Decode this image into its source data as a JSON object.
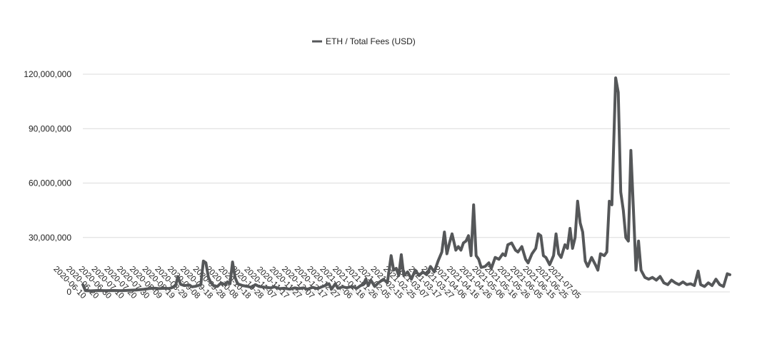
{
  "chart_data": {
    "type": "line",
    "title": "",
    "xlabel": "",
    "ylabel": "",
    "legend": {
      "position": "top-center"
    },
    "ylim": [
      0,
      120000000
    ],
    "grid": true,
    "y_ticks": [
      {
        "value": 0,
        "label": "0"
      },
      {
        "value": 30000000,
        "label": "30,000,000"
      },
      {
        "value": 60000000,
        "label": "60,000,000"
      },
      {
        "value": 90000000,
        "label": "90,000,000"
      },
      {
        "value": 120000000,
        "label": "120,000,000"
      }
    ],
    "x_ticks": [
      "2020-06-10",
      "2020-06-20",
      "2020-06-30",
      "2020-07-10",
      "2020-07-20",
      "2020-07-30",
      "2020-08-09",
      "2020-08-19",
      "2020-08-29",
      "2020-09-08",
      "2020-09-18",
      "2020-09-28",
      "2020-10-08",
      "2020-10-18",
      "2020-10-28",
      "2020-11-07",
      "2020-11-17",
      "2020-11-27",
      "2020-12-07",
      "2020-12-17",
      "2020-12-27",
      "2021-01-06",
      "2021-01-16",
      "2021-01-26",
      "2021-02-05",
      "2021-02-15",
      "2021-02-25",
      "2021-03-07",
      "2021-03-17",
      "2021-03-27",
      "2021-04-06",
      "2021-04-16",
      "2021-04-26",
      "2021-05-06",
      "2021-05-16",
      "2021-05-26",
      "2021-06-05",
      "2021-06-15",
      "2021-06-25",
      "2021-07-05"
    ],
    "color": "#555759",
    "series": [
      {
        "name": "ETH / Total Fees (USD)",
        "points": [
          [
            "2020-06-10",
            4000000
          ],
          [
            "2020-06-12",
            700000
          ],
          [
            "2020-06-16",
            600000
          ],
          [
            "2020-06-22",
            800000
          ],
          [
            "2020-06-28",
            700000
          ],
          [
            "2020-07-04",
            800000
          ],
          [
            "2020-07-10",
            700000
          ],
          [
            "2020-07-16",
            900000
          ],
          [
            "2020-07-22",
            1100000
          ],
          [
            "2020-07-28",
            1400000
          ],
          [
            "2020-08-01",
            1800000
          ],
          [
            "2020-08-05",
            2100000
          ],
          [
            "2020-08-09",
            1800000
          ],
          [
            "2020-08-13",
            2000000
          ],
          [
            "2020-08-17",
            1900000
          ],
          [
            "2020-08-19",
            2300000
          ],
          [
            "2020-08-22",
            3200000
          ],
          [
            "2020-08-24",
            8500000
          ],
          [
            "2020-08-26",
            4200000
          ],
          [
            "2020-08-29",
            3500000
          ],
          [
            "2020-09-02",
            3800000
          ],
          [
            "2020-09-04",
            2800000
          ],
          [
            "2020-09-07",
            3100000
          ],
          [
            "2020-09-11",
            4000000
          ],
          [
            "2020-09-13",
            17000000
          ],
          [
            "2020-09-15",
            16000000
          ],
          [
            "2020-09-17",
            8000000
          ],
          [
            "2020-09-19",
            5000000
          ],
          [
            "2020-09-21",
            3500000
          ],
          [
            "2020-09-24",
            3000000
          ],
          [
            "2020-09-27",
            5000000
          ],
          [
            "2020-09-30",
            4000000
          ],
          [
            "2020-10-02",
            5500000
          ],
          [
            "2020-10-04",
            4500000
          ],
          [
            "2020-10-06",
            16500000
          ],
          [
            "2020-10-08",
            8000000
          ],
          [
            "2020-10-10",
            4500000
          ],
          [
            "2020-10-14",
            3500000
          ],
          [
            "2020-10-18",
            3000000
          ],
          [
            "2020-10-21",
            2500000
          ],
          [
            "2020-10-24",
            4000000
          ],
          [
            "2020-10-27",
            3000000
          ],
          [
            "2020-11-01",
            2500000
          ],
          [
            "2020-11-05",
            2200000
          ],
          [
            "2020-11-08",
            2800000
          ],
          [
            "2020-11-12",
            1800000
          ],
          [
            "2020-11-16",
            2000000
          ],
          [
            "2020-11-20",
            1500000
          ],
          [
            "2020-11-24",
            2200000
          ],
          [
            "2020-11-27",
            1800000
          ],
          [
            "2020-12-01",
            2200000
          ],
          [
            "2020-12-04",
            1500000
          ],
          [
            "2020-12-08",
            2500000
          ],
          [
            "2020-12-12",
            1800000
          ],
          [
            "2020-12-15",
            2700000
          ],
          [
            "2020-12-18",
            3500000
          ],
          [
            "2020-12-21",
            4500000
          ],
          [
            "2020-12-23",
            1500000
          ],
          [
            "2020-12-26",
            4500000
          ],
          [
            "2020-12-28",
            2000000
          ],
          [
            "2021-01-01",
            2800000
          ],
          [
            "2021-01-04",
            2300000
          ],
          [
            "2021-01-08",
            3000000
          ],
          [
            "2021-01-12",
            2000000
          ],
          [
            "2021-01-15",
            3500000
          ],
          [
            "2021-01-17",
            4000000
          ],
          [
            "2021-01-19",
            7000000
          ],
          [
            "2021-01-21",
            3500000
          ],
          [
            "2021-01-23",
            6500000
          ],
          [
            "2021-01-26",
            3000000
          ],
          [
            "2021-01-29",
            5000000
          ],
          [
            "2021-02-02",
            7000000
          ],
          [
            "2021-02-05",
            5000000
          ],
          [
            "2021-02-08",
            20000000
          ],
          [
            "2021-02-10",
            12000000
          ],
          [
            "2021-02-12",
            13000000
          ],
          [
            "2021-02-14",
            9000000
          ],
          [
            "2021-02-16",
            20500000
          ],
          [
            "2021-02-18",
            9000000
          ],
          [
            "2021-02-21",
            11000000
          ],
          [
            "2021-02-24",
            7000000
          ],
          [
            "2021-02-27",
            12000000
          ],
          [
            "2021-03-02",
            9000000
          ],
          [
            "2021-03-05",
            11000000
          ],
          [
            "2021-03-08",
            9500000
          ],
          [
            "2021-03-11",
            14000000
          ],
          [
            "2021-03-14",
            11000000
          ],
          [
            "2021-03-17",
            17000000
          ],
          [
            "2021-03-20",
            22000000
          ],
          [
            "2021-03-22",
            33000000
          ],
          [
            "2021-03-24",
            21000000
          ],
          [
            "2021-03-26",
            27000000
          ],
          [
            "2021-03-28",
            32000000
          ],
          [
            "2021-03-31",
            23000000
          ],
          [
            "2021-04-02",
            25000000
          ],
          [
            "2021-04-04",
            23000000
          ],
          [
            "2021-04-06",
            27000000
          ],
          [
            "2021-04-08",
            28000000
          ],
          [
            "2021-04-10",
            31000000
          ],
          [
            "2021-04-12",
            20000000
          ],
          [
            "2021-04-14",
            48000000
          ],
          [
            "2021-04-16",
            20000000
          ],
          [
            "2021-04-18",
            18000000
          ],
          [
            "2021-04-20",
            13500000
          ],
          [
            "2021-04-23",
            14000000
          ],
          [
            "2021-04-26",
            16000000
          ],
          [
            "2021-04-28",
            13000000
          ],
          [
            "2021-05-01",
            19000000
          ],
          [
            "2021-05-04",
            18000000
          ],
          [
            "2021-05-07",
            21000000
          ],
          [
            "2021-05-09",
            20000000
          ],
          [
            "2021-05-11",
            26000000
          ],
          [
            "2021-05-14",
            27000000
          ],
          [
            "2021-05-17",
            23000000
          ],
          [
            "2021-05-19",
            22000000
          ],
          [
            "2021-05-22",
            25000000
          ],
          [
            "2021-05-25",
            18000000
          ],
          [
            "2021-05-27",
            16000000
          ],
          [
            "2021-05-30",
            21000000
          ],
          [
            "2021-06-02",
            24000000
          ],
          [
            "2021-06-04",
            32000000
          ],
          [
            "2021-06-06",
            31000000
          ],
          [
            "2021-06-08",
            20000000
          ],
          [
            "2021-06-10",
            19000000
          ],
          [
            "2021-06-13",
            15000000
          ],
          [
            "2021-06-16",
            20000000
          ],
          [
            "2021-06-18",
            32000000
          ],
          [
            "2021-06-20",
            21000000
          ],
          [
            "2021-06-22",
            19000000
          ],
          [
            "2021-06-25",
            26000000
          ],
          [
            "2021-06-27",
            24000000
          ],
          [
            "2021-06-29",
            35000000
          ],
          [
            "2021-07-01",
            24000000
          ],
          [
            "2021-07-03",
            30000000
          ],
          [
            "2021-07-05",
            50000000
          ],
          [
            "2021-07-07",
            38000000
          ],
          [
            "2021-07-09",
            33000000
          ],
          [
            "2021-07-11",
            17000000
          ],
          [
            "2021-07-13",
            14000000
          ],
          [
            "2021-07-16",
            19000000
          ],
          [
            "2021-07-19",
            15000000
          ],
          [
            "2021-07-21",
            12000000
          ],
          [
            "2021-07-23",
            21000000
          ],
          [
            "2021-07-26",
            20000000
          ],
          [
            "2021-07-28",
            22000000
          ],
          [
            "2021-07-30",
            50000000
          ],
          [
            "2021-08-01",
            48000000
          ],
          [
            "2021-08-04",
            118000000
          ],
          [
            "2021-08-06",
            110000000
          ],
          [
            "2021-08-08",
            55000000
          ],
          [
            "2021-08-10",
            45000000
          ],
          [
            "2021-08-12",
            30000000
          ],
          [
            "2021-08-14",
            28000000
          ],
          [
            "2021-08-16",
            78000000
          ],
          [
            "2021-08-18",
            45000000
          ],
          [
            "2021-08-20",
            12000000
          ],
          [
            "2021-08-22",
            28000000
          ],
          [
            "2021-08-24",
            12000000
          ],
          [
            "2021-08-27",
            8000000
          ],
          [
            "2021-08-30",
            7000000
          ],
          [
            "2021-09-02",
            8000000
          ],
          [
            "2021-09-05",
            6500000
          ],
          [
            "2021-09-08",
            8500000
          ],
          [
            "2021-09-11",
            5000000
          ],
          [
            "2021-09-14",
            4000000
          ],
          [
            "2021-09-17",
            6500000
          ],
          [
            "2021-09-20",
            5000000
          ],
          [
            "2021-09-23",
            4000000
          ],
          [
            "2021-09-26",
            5500000
          ],
          [
            "2021-09-29",
            4000000
          ],
          [
            "2021-10-02",
            4500000
          ],
          [
            "2021-10-05",
            3500000
          ],
          [
            "2021-10-08",
            11500000
          ],
          [
            "2021-10-10",
            4000000
          ],
          [
            "2021-10-13",
            3000000
          ],
          [
            "2021-10-16",
            5000000
          ],
          [
            "2021-10-19",
            3500000
          ],
          [
            "2021-10-22",
            7000000
          ],
          [
            "2021-10-25",
            4000000
          ],
          [
            "2021-10-28",
            3000000
          ],
          [
            "2021-10-31",
            10000000
          ],
          [
            "2021-11-02",
            9500000
          ]
        ]
      }
    ]
  }
}
